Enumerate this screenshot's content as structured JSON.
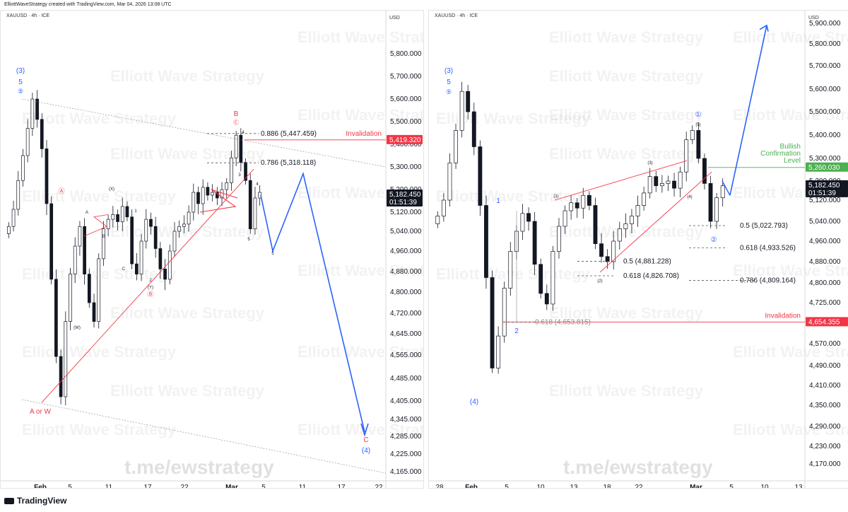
{
  "header": {
    "credit": "ElliottWaveStrategy created with TradingView.com, Mar 04, 2026 13:08 UTC"
  },
  "footer": {
    "brand": "TradingView"
  },
  "colors": {
    "up": "#131722",
    "down": "#131722",
    "wave_blue": "#2962ff",
    "wave_red": "#f23645",
    "invalidation": "#f23645",
    "bullish": "#4caf50",
    "price_tag": "#131722"
  },
  "chart_data": [
    {
      "id": "left",
      "type": "candlestick",
      "symbol": "XAUUSD · 4h · ICE",
      "currency": "USD",
      "watermark": "Elliott Wave Strategy",
      "footer_watermark": "t.me/ewstrategy",
      "x_ticks": [
        "Feb",
        "5",
        "11",
        "17",
        "22",
        "Mar",
        "5",
        "11",
        "17",
        "22"
      ],
      "y_ticks": [
        "5,800.000",
        "5,700.000",
        "5,600.000",
        "5,500.000",
        "5,400.000",
        "5,300.000",
        "5,200.000",
        "5,120.000",
        "5,040.000",
        "4,960.000",
        "4,880.000",
        "4,800.000",
        "4,720.000",
        "4,645.000",
        "4,565.000",
        "4,485.000",
        "4,405.000",
        "4,345.000",
        "4,285.000",
        "4,225.000",
        "4,165.000"
      ],
      "y_tick_values": [
        5800,
        5700,
        5600,
        5500,
        5400,
        5300,
        5200,
        5120,
        5040,
        4960,
        4880,
        4800,
        4720,
        4645,
        4565,
        4485,
        4405,
        4345,
        4285,
        4225,
        4165
      ],
      "ohlc_close": [
        5060,
        5130,
        5240,
        5350,
        5470,
        5600,
        5510,
        5380,
        5150,
        4850,
        4560,
        4420,
        4690,
        4870,
        4980,
        5060,
        4870,
        4760,
        4690,
        4930,
        5050,
        5090,
        5110,
        5080,
        5140,
        5100,
        4910,
        4870,
        5000,
        5090,
        5060,
        4970,
        4890,
        4850,
        4960,
        5040,
        5060,
        5070,
        5120,
        5190,
        5150,
        5210,
        5180,
        5190,
        5170,
        5200,
        5230,
        5340,
        5440,
        5320,
        5240,
        5050,
        5170,
        5190
      ],
      "price_labels": [
        {
          "text": "Invalidation",
          "price": 5419.32,
          "tag": "5,419.320"
        },
        {
          "text": "current",
          "price": 5182.45,
          "tag": "5,182.450",
          "timer": "01:51:39"
        }
      ],
      "fib_levels": [
        {
          "label": "0.886 (5,447.459)",
          "value": 5447.459
        },
        {
          "label": "0.786 (5,318.118)",
          "value": 5318.118
        }
      ],
      "wave_labels": [
        "(3)",
        "5",
        "⑤",
        "Ⓐ",
        "Ⓑ",
        "Ⓒ",
        "B",
        "A or W",
        "C",
        "(4)",
        "(W)",
        "(X)",
        "(Y)",
        "A",
        "B",
        "C",
        "1",
        "2",
        "3",
        "4",
        "5"
      ],
      "projection": [
        [
          0,
          5180
        ],
        [
          1,
          4960
        ],
        [
          2,
          5270
        ],
        [
          3,
          4300
        ]
      ]
    },
    {
      "id": "right",
      "type": "candlestick",
      "symbol": "XAUUSD · 4h · ICE",
      "currency": "USD",
      "watermark": "Elliott Wave Strategy",
      "footer_watermark": "t.me/ewstrategy",
      "x_ticks": [
        "28",
        "Feb",
        "5",
        "10",
        "13",
        "18",
        "22",
        "Mar",
        "5",
        "10",
        "13"
      ],
      "y_ticks": [
        "5,900.000",
        "5,800.000",
        "5,700.000",
        "5,600.000",
        "5,500.000",
        "5,400.000",
        "5,300.000",
        "5,200.000",
        "5,120.000",
        "5,040.000",
        "4,960.000",
        "4,880.000",
        "4,800.000",
        "4,725.000",
        "4,650.000",
        "4,570.000",
        "4,490.000",
        "4,410.000",
        "4,350.000",
        "4,290.000",
        "4,230.000",
        "4,170.000"
      ],
      "y_tick_values": [
        5900,
        5800,
        5700,
        5600,
        5500,
        5400,
        5300,
        5200,
        5120,
        5040,
        4960,
        4880,
        4800,
        4725,
        4650,
        4570,
        4490,
        4410,
        4350,
        4290,
        4230,
        4170
      ],
      "ohlc_close": [
        5060,
        5120,
        5280,
        5420,
        5590,
        5500,
        5350,
        5100,
        4820,
        4480,
        4600,
        4780,
        4920,
        5000,
        5070,
        5040,
        4870,
        4760,
        4720,
        4920,
        5020,
        5080,
        5110,
        5090,
        5140,
        5100,
        4950,
        4900,
        4880,
        4960,
        5010,
        5030,
        5060,
        5100,
        5150,
        5220,
        5180,
        5190,
        5200,
        5170,
        5240,
        5380,
        5420,
        5300,
        5190,
        5040,
        5130,
        5180
      ],
      "price_labels": [
        {
          "text": "Bullish Confirmation Level",
          "price": 5260.03,
          "tag": "5,260.030"
        },
        {
          "text": "current",
          "price": 5182.45,
          "tag": "5,182.450",
          "timer": "01:51:39"
        },
        {
          "text": "Invalidation",
          "price": 4654.355,
          "tag": "4,654.355"
        }
      ],
      "fib_levels": [
        {
          "label": "0.5 (5,022.793)",
          "value": 5022.793
        },
        {
          "label": "0.618 (4,933.526)",
          "value": 4933.526
        },
        {
          "label": "0.786 (4,809.164)",
          "value": 4809.164
        },
        {
          "label": "0.5 (4,881.228)",
          "value": 4881.228
        },
        {
          "label": "0.618 (4,826.708)",
          "value": 4826.708
        },
        {
          "label": "0.618 (4,653.815)",
          "value": 4653.815
        }
      ],
      "wave_labels": [
        "(3)",
        "5",
        "⑤",
        "1",
        "2",
        "(4)",
        "(1)",
        "(2)",
        "(3)",
        "(4)",
        "(5)",
        "①",
        "②"
      ],
      "projection": [
        [
          0,
          5140
        ],
        [
          1,
          5890
        ]
      ]
    }
  ]
}
